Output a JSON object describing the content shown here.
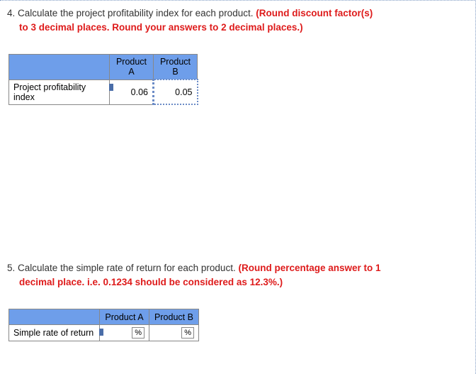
{
  "q4": {
    "number": "4.",
    "prompt": "Calculate the project profitability index for each product.",
    "instruction_red1": "(Round discount factor(s)",
    "instruction_red2": "to 3 decimal places. Round your answers to 2 decimal places.)",
    "table": {
      "col_a": "Product A",
      "col_b": "Product B",
      "row_label": "Project profitability index",
      "val_a": "0.06",
      "val_b": "0.05"
    }
  },
  "q5": {
    "number": "5.",
    "prompt": "Calculate the simple rate of return for each product.",
    "instruction_red1": "(Round percentage answer to 1",
    "instruction_red2": "decimal place. i.e. 0.1234 should be considered as 12.3%.)",
    "table": {
      "col_a": "Product A",
      "col_b": "Product B",
      "row_label": "Simple rate of return",
      "val_a": "",
      "val_b": "",
      "suffix": "%"
    }
  },
  "colors": {
    "header_bg": "#6e9eea",
    "red_text": "#de1b1b",
    "border_dotted": "#7f9bc4",
    "handle": "#4a6da8"
  }
}
